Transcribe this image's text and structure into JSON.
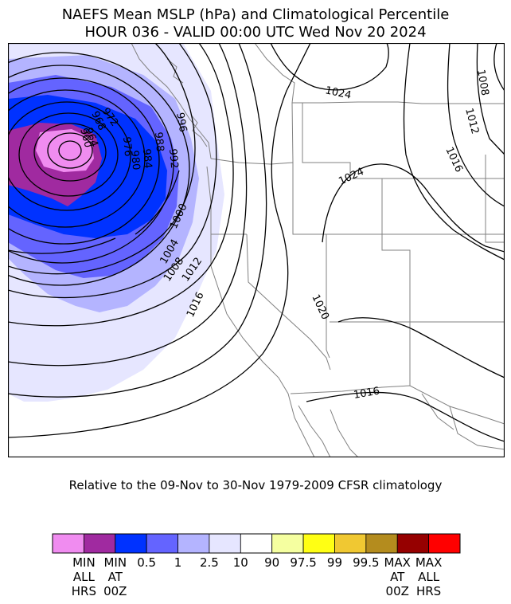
{
  "title_line1": "NAEFS Mean MSLP (hPa) and Climatological Percentile",
  "title_line2": "HOUR 036 - VALID 00:00 UTC Wed Nov 20 2024",
  "subtitle": "Relative to the 09-Nov to 30-Nov 1979-2009 CFSR climatology",
  "contour_labels": [
    "1024",
    "1024",
    "1008",
    "1012",
    "1016",
    "996",
    "992",
    "988",
    "984",
    "980",
    "976",
    "972",
    "968",
    "964",
    "960",
    "1000",
    "1004",
    "1008",
    "1012",
    "1016",
    "1020",
    "1016"
  ],
  "colorbar": {
    "colors": [
      "#f08cf0",
      "#a02aa0",
      "#0032ff",
      "#6464ff",
      "#b4b4ff",
      "#e6e6ff",
      "#ffffff",
      "#f5ffa0",
      "#ffff14",
      "#f0c832",
      "#b48c1e",
      "#960000",
      "#ff0000"
    ],
    "labels": [
      "MIN\nALL\nHRS",
      "MIN\nAT\n00Z",
      "0.5",
      "1",
      "2.5",
      "10",
      "90",
      "97.5",
      "99",
      "99.5",
      "MAX\nAT\n00Z",
      "MAX\nALL\nHRS"
    ]
  }
}
